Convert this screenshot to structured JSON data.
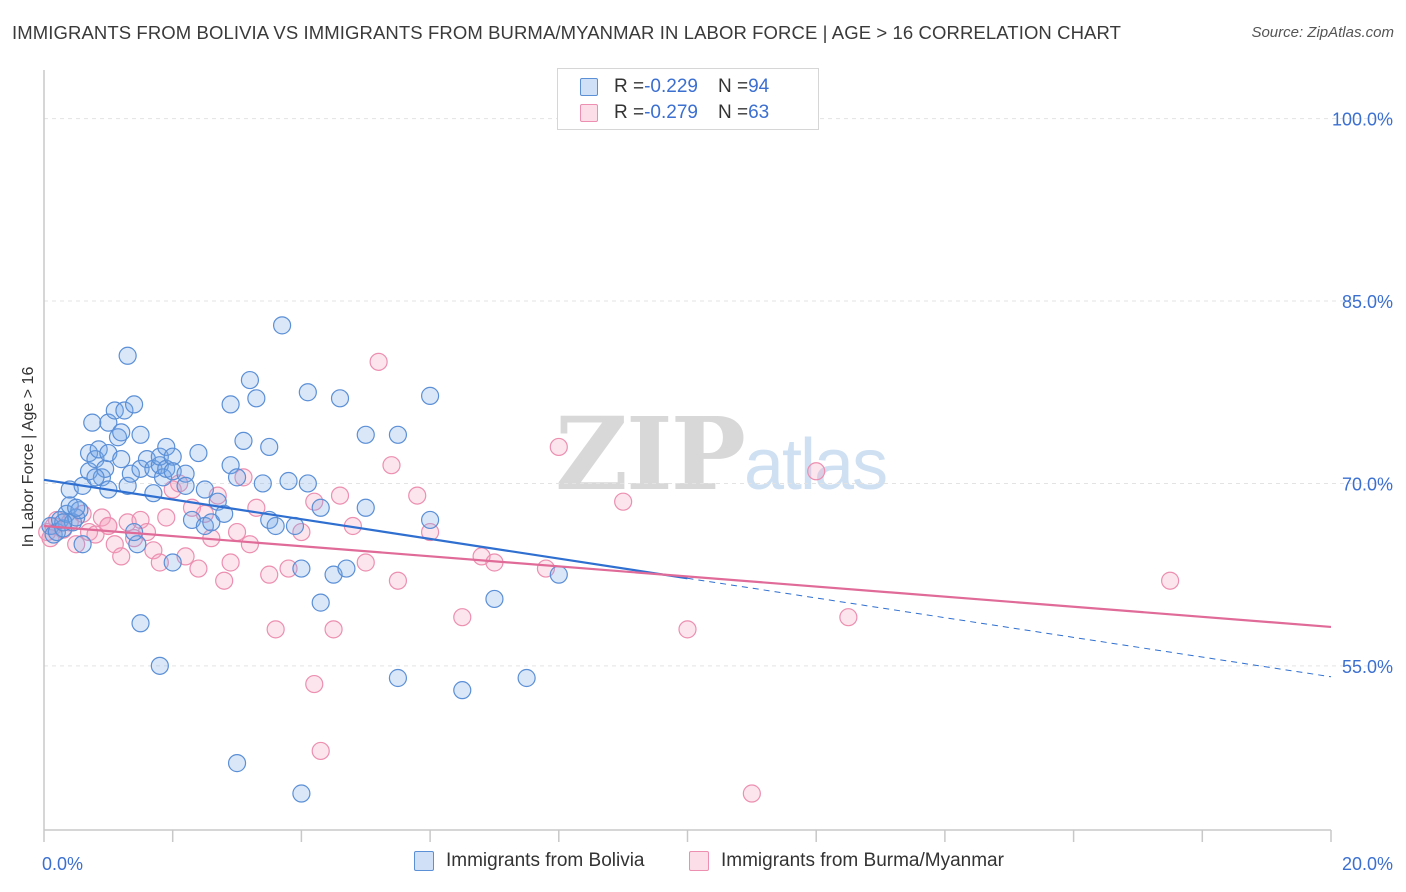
{
  "title": "IMMIGRANTS FROM BOLIVIA VS IMMIGRANTS FROM BURMA/MYANMAR IN LABOR FORCE | AGE > 16 CORRELATION CHART",
  "source": "Source: ZipAtlas.com",
  "watermark": {
    "zip": "ZIP",
    "atlas": "atlas"
  },
  "legend_top": [
    {
      "r_label": "R = ",
      "r_value": "-0.229",
      "n_label": "N = ",
      "n_value": "94"
    },
    {
      "r_label": "R = ",
      "r_value": "-0.279",
      "n_label": "N = ",
      "n_value": "63"
    }
  ],
  "colors": {
    "bolivia_fill": "rgba(120,168,232,0.28)",
    "bolivia_stroke": "#5b8fd6",
    "bolivia_line": "#2f6fd0",
    "burma_fill": "rgba(246,160,190,0.28)",
    "burma_stroke": "#ec8fb0",
    "burma_line": "#e06a98",
    "tick_label": "#3b6fd0",
    "grid": "#e3e3e3"
  },
  "chart_data": {
    "type": "scatter",
    "title": "IMMIGRANTS FROM BOLIVIA VS IMMIGRANTS FROM BURMA/MYANMAR IN LABOR FORCE | AGE > 16 CORRELATION CHART",
    "xlabel": "",
    "ylabel": "In Labor Force | Age > 16",
    "xlim": [
      0,
      20
    ],
    "ylim": [
      41.5,
      104
    ],
    "x_tick_labels": [
      "0.0%",
      "20.0%"
    ],
    "x_tick_values": [
      0,
      20
    ],
    "x_minor_ticks": [
      0,
      2,
      4,
      6,
      8,
      10,
      12,
      14,
      16,
      18,
      20
    ],
    "y_tick_labels": [
      "100.0%",
      "85.0%",
      "70.0%",
      "55.0%"
    ],
    "y_tick_values": [
      100,
      85,
      70,
      55
    ],
    "grid": true,
    "series": [
      {
        "name": "Immigrants from Bolivia",
        "r": -0.229,
        "n": 94,
        "trend": {
          "x0": 0,
          "y0": 70.3,
          "x1": 10,
          "y1": 62.2,
          "dashed_to_x": 20,
          "dashed_to_y": 54.1
        },
        "points": [
          [
            0.1,
            66.5
          ],
          [
            0.15,
            65.8
          ],
          [
            0.2,
            66.0
          ],
          [
            0.25,
            67.0
          ],
          [
            0.3,
            66.3
          ],
          [
            0.35,
            67.5
          ],
          [
            0.4,
            68.2
          ],
          [
            0.45,
            66.8
          ],
          [
            0.5,
            67.2
          ],
          [
            0.55,
            67.8
          ],
          [
            0.6,
            65.0
          ],
          [
            0.4,
            69.5
          ],
          [
            0.5,
            68.0
          ],
          [
            0.6,
            69.8
          ],
          [
            0.7,
            72.5
          ],
          [
            0.7,
            71.0
          ],
          [
            0.75,
            75.0
          ],
          [
            0.8,
            72.0
          ],
          [
            0.85,
            72.8
          ],
          [
            0.9,
            70.5
          ],
          [
            0.95,
            71.2
          ],
          [
            1.0,
            69.5
          ],
          [
            1.0,
            72.5
          ],
          [
            1.0,
            75.0
          ],
          [
            1.1,
            76.0
          ],
          [
            1.15,
            73.8
          ],
          [
            1.2,
            72.0
          ],
          [
            1.2,
            74.2
          ],
          [
            1.25,
            76.0
          ],
          [
            1.3,
            80.5
          ],
          [
            1.3,
            69.8
          ],
          [
            1.35,
            70.8
          ],
          [
            1.4,
            76.5
          ],
          [
            1.45,
            65.0
          ],
          [
            1.5,
            71.2
          ],
          [
            1.5,
            74.0
          ],
          [
            1.5,
            58.5
          ],
          [
            1.6,
            72.0
          ],
          [
            1.7,
            71.2
          ],
          [
            1.7,
            69.2
          ],
          [
            1.8,
            71.5
          ],
          [
            1.8,
            72.2
          ],
          [
            1.85,
            70.5
          ],
          [
            1.9,
            73.0
          ],
          [
            1.9,
            71.2
          ],
          [
            2.0,
            72.2
          ],
          [
            2.0,
            71.0
          ],
          [
            2.2,
            70.8
          ],
          [
            2.2,
            69.8
          ],
          [
            2.3,
            67.0
          ],
          [
            2.4,
            72.5
          ],
          [
            2.5,
            66.5
          ],
          [
            2.5,
            69.5
          ],
          [
            2.6,
            66.8
          ],
          [
            2.7,
            68.5
          ],
          [
            2.8,
            67.5
          ],
          [
            2.9,
            71.5
          ],
          [
            2.9,
            76.5
          ],
          [
            3.0,
            70.5
          ],
          [
            3.1,
            73.5
          ],
          [
            3.2,
            78.5
          ],
          [
            3.3,
            77.0
          ],
          [
            3.4,
            70.0
          ],
          [
            3.5,
            67.0
          ],
          [
            3.5,
            73.0
          ],
          [
            3.6,
            66.5
          ],
          [
            3.7,
            83.0
          ],
          [
            3.8,
            70.2
          ],
          [
            3.9,
            66.5
          ],
          [
            4.0,
            63.0
          ],
          [
            4.1,
            70.0
          ],
          [
            4.1,
            77.5
          ],
          [
            4.3,
            68.0
          ],
          [
            4.3,
            60.2
          ],
          [
            4.5,
            62.5
          ],
          [
            4.6,
            77.0
          ],
          [
            4.7,
            63.0
          ],
          [
            5.0,
            74.0
          ],
          [
            5.0,
            68.0
          ],
          [
            5.5,
            54.0
          ],
          [
            5.5,
            74.0
          ],
          [
            6.0,
            77.2
          ],
          [
            6.0,
            67.0
          ],
          [
            6.5,
            53.0
          ],
          [
            7.0,
            60.5
          ],
          [
            7.5,
            54.0
          ],
          [
            8.0,
            62.5
          ],
          [
            1.4,
            66.0
          ],
          [
            2.0,
            63.5
          ],
          [
            3.0,
            47.0
          ],
          [
            4.0,
            44.5
          ],
          [
            0.3,
            66.8
          ],
          [
            0.8,
            70.5
          ],
          [
            1.8,
            55.0
          ]
        ]
      },
      {
        "name": "Immigrants from Burma/Myanmar",
        "r": -0.279,
        "n": 63,
        "trend": {
          "x0": 0,
          "y0": 66.5,
          "x1": 20,
          "y1": 58.2
        },
        "points": [
          [
            0.05,
            66.0
          ],
          [
            0.1,
            65.5
          ],
          [
            0.15,
            66.5
          ],
          [
            0.2,
            67.0
          ],
          [
            0.3,
            66.2
          ],
          [
            0.4,
            66.8
          ],
          [
            0.5,
            65.0
          ],
          [
            0.6,
            67.5
          ],
          [
            0.7,
            66.0
          ],
          [
            0.8,
            65.8
          ],
          [
            0.9,
            67.2
          ],
          [
            1.0,
            66.5
          ],
          [
            1.1,
            65.0
          ],
          [
            1.2,
            64.0
          ],
          [
            1.3,
            66.8
          ],
          [
            1.4,
            65.5
          ],
          [
            1.5,
            67.0
          ],
          [
            1.6,
            66.0
          ],
          [
            1.7,
            64.5
          ],
          [
            1.8,
            63.5
          ],
          [
            1.9,
            67.2
          ],
          [
            2.0,
            69.5
          ],
          [
            2.1,
            70.0
          ],
          [
            2.2,
            64.0
          ],
          [
            2.3,
            68.0
          ],
          [
            2.4,
            63.0
          ],
          [
            2.5,
            67.5
          ],
          [
            2.6,
            65.5
          ],
          [
            2.7,
            69.0
          ],
          [
            2.8,
            62.0
          ],
          [
            2.9,
            63.5
          ],
          [
            3.0,
            66.0
          ],
          [
            3.1,
            70.5
          ],
          [
            3.2,
            65.0
          ],
          [
            3.3,
            68.0
          ],
          [
            3.5,
            62.5
          ],
          [
            3.6,
            58.0
          ],
          [
            3.8,
            63.0
          ],
          [
            4.0,
            66.0
          ],
          [
            4.2,
            68.5
          ],
          [
            4.3,
            48.0
          ],
          [
            4.5,
            58.0
          ],
          [
            4.6,
            69.0
          ],
          [
            4.8,
            66.5
          ],
          [
            5.0,
            63.5
          ],
          [
            5.2,
            80.0
          ],
          [
            5.4,
            71.5
          ],
          [
            5.5,
            62.0
          ],
          [
            5.8,
            69.0
          ],
          [
            6.0,
            66.0
          ],
          [
            6.5,
            59.0
          ],
          [
            6.8,
            64.0
          ],
          [
            7.0,
            63.5
          ],
          [
            7.8,
            63.0
          ],
          [
            8.0,
            73.0
          ],
          [
            9.0,
            68.5
          ],
          [
            10.0,
            58.0
          ],
          [
            11.0,
            44.5
          ],
          [
            12.0,
            71.0
          ],
          [
            12.5,
            59.0
          ],
          [
            17.5,
            62.0
          ],
          [
            4.2,
            53.5
          ],
          [
            1.0,
            66.5
          ]
        ]
      }
    ]
  },
  "bottom_legend": [
    {
      "label": "Immigrants from Bolivia"
    },
    {
      "label": "Immigrants from Burma/Myanmar"
    }
  ]
}
